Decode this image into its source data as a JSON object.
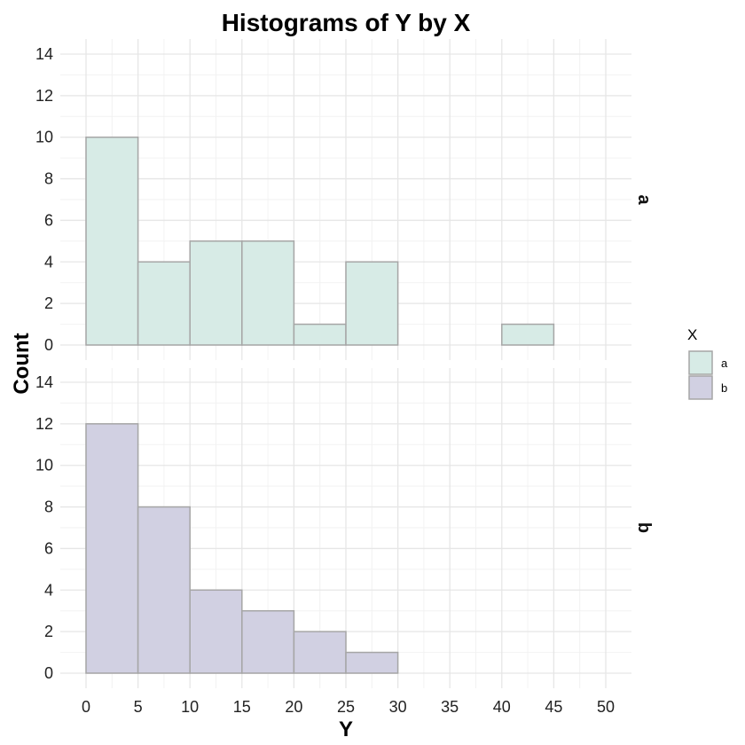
{
  "chart_data": {
    "type": "bar",
    "subtype": "faceted-histogram",
    "title": "Histograms of Y by X",
    "xlabel": "Y",
    "ylabel": "Count",
    "bin_width": 5,
    "bin_edges": [
      0,
      5,
      10,
      15,
      20,
      25,
      30,
      35,
      40,
      45,
      50
    ],
    "x_ticks": [
      0,
      5,
      10,
      15,
      20,
      25,
      30,
      35,
      40,
      45,
      50
    ],
    "xlim": [
      0,
      50
    ],
    "y_ticks": [
      0,
      2,
      4,
      6,
      8,
      10,
      12,
      14
    ],
    "ylim": [
      0,
      14
    ],
    "grid": true,
    "legend": {
      "title": "X",
      "placement": "right"
    },
    "series": [
      {
        "name": "a",
        "color": "#d7ebe6",
        "values": [
          10,
          4,
          5,
          5,
          1,
          4,
          0,
          0,
          1,
          0
        ]
      },
      {
        "name": "b",
        "color": "#d1d0e2",
        "values": [
          12,
          8,
          4,
          3,
          2,
          1,
          0,
          0,
          0,
          0
        ]
      }
    ],
    "bar_outline_color": "#a6a6a6"
  }
}
